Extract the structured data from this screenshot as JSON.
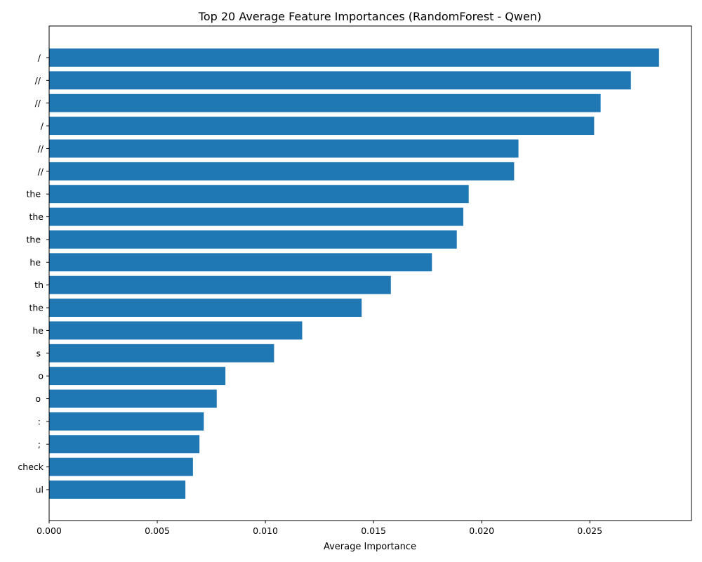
{
  "chart_data": {
    "type": "bar",
    "orientation": "horizontal",
    "title": "Top 20 Average Feature Importances (RandomForest - Qwen)",
    "xlabel": "Average Importance",
    "ylabel": "",
    "categories": [
      " / ",
      " // ",
      " // ",
      " /",
      " //",
      " //",
      " the ",
      " the",
      " the ",
      " he ",
      " th",
      " the",
      " he",
      " s ",
      " o",
      " o ",
      " : ",
      " ; ",
      " check",
      " ul"
    ],
    "values": [
      0.0282,
      0.0269,
      0.0255,
      0.0252,
      0.0217,
      0.0215,
      0.0194,
      0.01915,
      0.01885,
      0.0177,
      0.0158,
      0.01445,
      0.0117,
      0.0104,
      0.00815,
      0.00775,
      0.00715,
      0.00695,
      0.00665,
      0.0063
    ],
    "xlim": [
      0,
      0.0297
    ],
    "xticks": [
      0.0,
      0.005,
      0.01,
      0.015,
      0.02,
      0.025
    ],
    "xtick_labels": [
      "0.000",
      "0.005",
      "0.010",
      "0.015",
      "0.020",
      "0.025"
    ],
    "grid": false,
    "legend": "none",
    "bar_color": "#1f77b4"
  }
}
